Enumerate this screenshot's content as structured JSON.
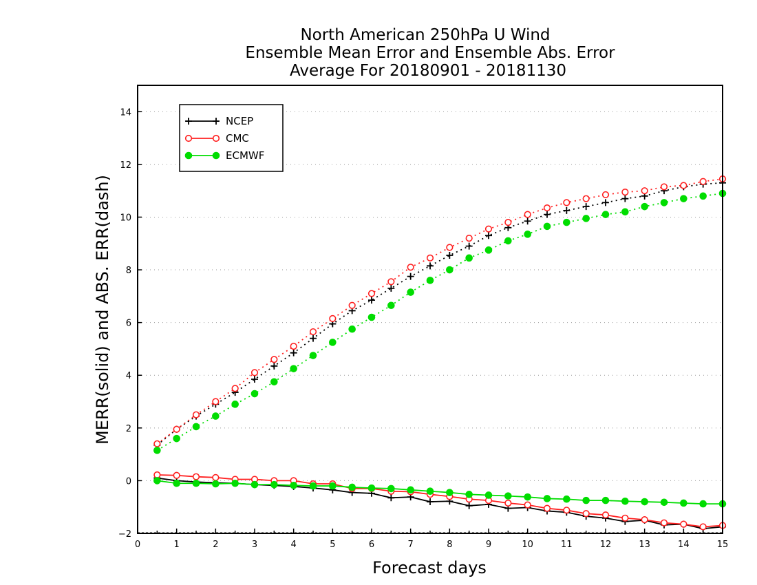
{
  "chart_data": {
    "type": "line",
    "title": [
      "North American 250hPa U Wind",
      "Ensemble Mean Error and Ensemble Abs. Error",
      "Average For 20180901 - 20181130"
    ],
    "xlabel": "Forecast days",
    "ylabel": "MERR(solid) and ABS. ERR(dash)",
    "xlim": [
      0,
      15
    ],
    "ylim": [
      -2,
      15
    ],
    "x_ticks": [
      "0",
      "1",
      "2",
      "3",
      "4",
      "5",
      "6",
      "7",
      "8",
      "9",
      "10",
      "11",
      "12",
      "13",
      "14",
      "15"
    ],
    "y_ticks": [
      "−2",
      "0",
      "2",
      "4",
      "6",
      "8",
      "10",
      "12",
      "14"
    ],
    "y_tick_values": [
      -2,
      0,
      2,
      4,
      6,
      8,
      10,
      12,
      14
    ],
    "grid": true,
    "legend_position": "top-left",
    "x": [
      0.5,
      1,
      1.5,
      2,
      2.5,
      3,
      3.5,
      4,
      4.5,
      5,
      5.5,
      6,
      6.5,
      7,
      7.5,
      8,
      8.5,
      9,
      9.5,
      10,
      10.5,
      11,
      11.5,
      12,
      12.5,
      13,
      13.5,
      14,
      14.5,
      15
    ],
    "series": [
      {
        "name": "NCEP",
        "color": "#000000",
        "marker": "plus",
        "merr": [
          0.1,
          0.0,
          -0.05,
          -0.08,
          -0.1,
          -0.15,
          -0.18,
          -0.22,
          -0.28,
          -0.35,
          -0.45,
          -0.48,
          -0.65,
          -0.62,
          -0.8,
          -0.78,
          -0.95,
          -0.9,
          -1.05,
          -1.02,
          -1.15,
          -1.2,
          -1.35,
          -1.42,
          -1.55,
          -1.5,
          -1.68,
          -1.65,
          -1.82,
          -1.75
        ],
        "abs_err": [
          1.35,
          1.95,
          2.45,
          2.9,
          3.35,
          3.85,
          4.35,
          4.85,
          5.4,
          5.95,
          6.45,
          6.85,
          7.3,
          7.75,
          8.15,
          8.55,
          8.9,
          9.3,
          9.6,
          9.85,
          10.1,
          10.25,
          10.4,
          10.55,
          10.7,
          10.8,
          11.0,
          11.15,
          11.25,
          11.3
        ]
      },
      {
        "name": "CMC",
        "color": "#ff2020",
        "marker": "open-circle",
        "merr": [
          0.22,
          0.2,
          0.15,
          0.12,
          0.05,
          0.05,
          0.0,
          0.0,
          -0.12,
          -0.12,
          -0.3,
          -0.3,
          -0.4,
          -0.42,
          -0.52,
          -0.6,
          -0.7,
          -0.75,
          -0.85,
          -0.92,
          -1.05,
          -1.12,
          -1.25,
          -1.3,
          -1.42,
          -1.48,
          -1.6,
          -1.65,
          -1.75,
          -1.7
        ],
        "abs_err": [
          1.4,
          1.95,
          2.5,
          3.0,
          3.5,
          4.1,
          4.6,
          5.1,
          5.65,
          6.15,
          6.65,
          7.1,
          7.55,
          8.1,
          8.45,
          8.85,
          9.2,
          9.55,
          9.8,
          10.1,
          10.35,
          10.55,
          10.7,
          10.85,
          10.95,
          11.0,
          11.15,
          11.2,
          11.35,
          11.45
        ]
      },
      {
        "name": "ECMWF",
        "color": "#00dd00",
        "marker": "filled-circle",
        "merr": [
          0.0,
          -0.1,
          -0.1,
          -0.12,
          -0.1,
          -0.15,
          -0.15,
          -0.18,
          -0.2,
          -0.2,
          -0.25,
          -0.28,
          -0.3,
          -0.35,
          -0.4,
          -0.45,
          -0.52,
          -0.55,
          -0.58,
          -0.62,
          -0.68,
          -0.7,
          -0.75,
          -0.75,
          -0.78,
          -0.8,
          -0.82,
          -0.85,
          -0.88,
          -0.88
        ],
        "abs_err": [
          1.15,
          1.6,
          2.05,
          2.45,
          2.9,
          3.3,
          3.75,
          4.25,
          4.75,
          5.25,
          5.75,
          6.2,
          6.65,
          7.15,
          7.6,
          8.0,
          8.45,
          8.75,
          9.1,
          9.35,
          9.65,
          9.8,
          9.95,
          10.1,
          10.2,
          10.4,
          10.55,
          10.7,
          10.8,
          10.9
        ]
      }
    ]
  }
}
